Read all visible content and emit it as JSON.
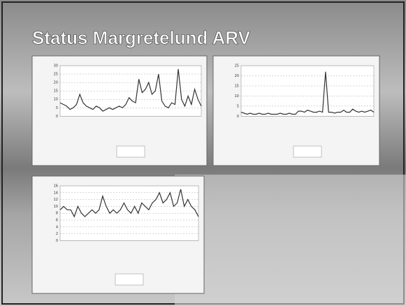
{
  "title": "Status Margretelund ARV",
  "chart_data": [
    {
      "type": "line",
      "color": "#333333",
      "ylim": [
        0,
        30
      ],
      "yticks": [
        0,
        5,
        10,
        15,
        20,
        25,
        30
      ],
      "grid": true,
      "values": [
        8,
        7,
        6,
        4,
        5,
        7,
        13,
        8,
        6,
        5,
        4,
        6,
        5,
        3,
        4,
        5,
        4,
        5,
        6,
        5,
        7,
        11,
        9,
        8,
        22,
        14,
        16,
        20,
        13,
        15,
        25,
        9,
        6,
        5,
        8,
        7,
        28,
        10,
        6,
        12,
        7,
        16,
        10,
        6
      ]
    },
    {
      "type": "line",
      "color": "#333333",
      "ylim": [
        0,
        25
      ],
      "yticks": [
        0,
        5,
        10,
        15,
        20,
        25
      ],
      "grid": true,
      "values": [
        2,
        1.5,
        1,
        1.5,
        1,
        1,
        1.5,
        1,
        1,
        1.5,
        1,
        1,
        1,
        1.5,
        1,
        1,
        1.5,
        1,
        1,
        2.5,
        2.5,
        2,
        3,
        2.5,
        2,
        2,
        2.5,
        2,
        22,
        2,
        2,
        1.5,
        2,
        2,
        3,
        2,
        2,
        3.5,
        2.5,
        2,
        2.5,
        2,
        2.5,
        3,
        2
      ]
    },
    {
      "type": "line",
      "color": "#333333",
      "ylim": [
        0,
        16
      ],
      "yticks": [
        0,
        2,
        4,
        6,
        8,
        10,
        12,
        14,
        16
      ],
      "grid": true,
      "values": [
        9,
        10,
        9,
        9,
        7,
        10,
        8,
        7,
        8,
        9,
        8,
        9,
        13,
        10,
        8,
        9,
        8,
        9,
        11,
        9,
        8,
        10,
        8,
        11,
        10,
        9,
        11,
        12,
        14,
        11,
        12,
        14,
        10,
        11,
        15,
        10,
        12,
        10,
        9,
        7
      ]
    }
  ]
}
